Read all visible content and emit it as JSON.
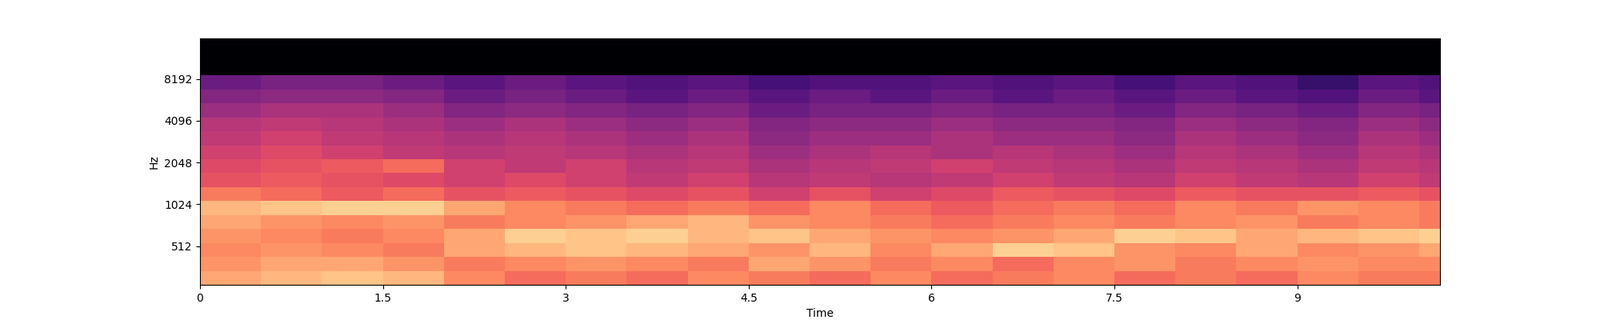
{
  "chart_data": {
    "type": "heatmap",
    "x_label": "Time",
    "y_label": "Hz",
    "xlim": [
      0,
      10.17
    ],
    "xticks": [
      0,
      1.5,
      3,
      4.5,
      6,
      7.5,
      9
    ],
    "ylim": [
      270,
      16000
    ],
    "yticks": [
      512,
      1024,
      2048,
      4096,
      8192
    ],
    "log": "y",
    "color": "magma",
    "color_range": [
      -80,
      0
    ],
    "time_edges": [
      0,
      0.5,
      1,
      1.5,
      2,
      2.5,
      3,
      3.5,
      4,
      4.5,
      5,
      5.5,
      6,
      6.5,
      7,
      7.5,
      8,
      8.5,
      9,
      9.5,
      10,
      10.17
    ],
    "freq_edges": [
      270,
      340,
      430,
      540,
      680,
      860,
      1080,
      1360,
      1720,
      2160,
      2720,
      3430,
      4320,
      5450,
      6860,
      8640,
      10900,
      13700,
      16000
    ],
    "cells": [
      [
        -15,
        -12,
        -10,
        -12,
        -20,
        -25,
        -22,
        -25,
        -20,
        -22,
        -25,
        -20,
        -25,
        -22,
        -20,
        -25,
        -22,
        -25,
        -20,
        -22,
        -22
      ],
      [
        -18,
        -15,
        -15,
        -18,
        -22,
        -20,
        -18,
        -20,
        -22,
        -15,
        -18,
        -22,
        -20,
        -25,
        -20,
        -18,
        -22,
        -20,
        -18,
        -20,
        -20
      ],
      [
        -20,
        -18,
        -20,
        -22,
        -15,
        -12,
        -10,
        -12,
        -15,
        -18,
        -12,
        -20,
        -15,
        -8,
        -10,
        -18,
        -20,
        -15,
        -20,
        -18,
        -15
      ],
      [
        -18,
        -20,
        -22,
        -20,
        -15,
        -8,
        -10,
        -8,
        -12,
        -10,
        -15,
        -18,
        -20,
        -18,
        -15,
        -8,
        -10,
        -15,
        -12,
        -10,
        -8
      ],
      [
        -15,
        -18,
        -20,
        -18,
        -22,
        -20,
        -18,
        -15,
        -12,
        -18,
        -20,
        -22,
        -25,
        -22,
        -20,
        -22,
        -20,
        -18,
        -22,
        -20,
        -22
      ],
      [
        -12,
        -10,
        -8,
        -8,
        -15,
        -20,
        -22,
        -25,
        -22,
        -25,
        -20,
        -25,
        -28,
        -25,
        -22,
        -25,
        -20,
        -22,
        -18,
        -20,
        -22
      ],
      [
        -22,
        -25,
        -28,
        -25,
        -30,
        -28,
        -30,
        -32,
        -30,
        -35,
        -30,
        -35,
        -32,
        -28,
        -30,
        -32,
        -28,
        -30,
        -30,
        -28,
        -30
      ],
      [
        -30,
        -28,
        -30,
        -32,
        -35,
        -32,
        -35,
        -38,
        -35,
        -40,
        -38,
        -40,
        -38,
        -35,
        -38,
        -40,
        -35,
        -38,
        -40,
        -35,
        -38
      ],
      [
        -32,
        -30,
        -28,
        -25,
        -35,
        -38,
        -35,
        -40,
        -38,
        -42,
        -40,
        -38,
        -35,
        -38,
        -40,
        -42,
        -38,
        -40,
        -42,
        -38,
        -40
      ],
      [
        -35,
        -32,
        -35,
        -38,
        -40,
        -38,
        -40,
        -42,
        -40,
        -45,
        -42,
        -40,
        -42,
        -40,
        -42,
        -45,
        -40,
        -42,
        -45,
        -40,
        -42
      ],
      [
        -38,
        -35,
        -38,
        -40,
        -42,
        -40,
        -42,
        -45,
        -42,
        -48,
        -45,
        -45,
        -42,
        -45,
        -45,
        -48,
        -42,
        -45,
        -48,
        -42,
        -45
      ],
      [
        -40,
        -38,
        -40,
        -42,
        -45,
        -42,
        -45,
        -48,
        -45,
        -50,
        -48,
        -48,
        -45,
        -48,
        -48,
        -50,
        -45,
        -48,
        -50,
        -45,
        -48
      ],
      [
        -45,
        -42,
        -42,
        -45,
        -50,
        -48,
        -50,
        -52,
        -50,
        -55,
        -52,
        -52,
        -50,
        -52,
        -52,
        -55,
        -50,
        -52,
        -55,
        -50,
        -52
      ],
      [
        -50,
        -48,
        -48,
        -50,
        -55,
        -52,
        -55,
        -58,
        -55,
        -58,
        -55,
        -58,
        -55,
        -58,
        -55,
        -58,
        -55,
        -58,
        -60,
        -55,
        -58
      ],
      [
        -55,
        -52,
        -52,
        -55,
        -58,
        -55,
        -58,
        -60,
        -58,
        -62,
        -60,
        -60,
        -58,
        -60,
        -58,
        -62,
        -58,
        -60,
        -65,
        -58,
        -60
      ],
      [
        -80,
        -80,
        -80,
        -80,
        -80,
        -80,
        -80,
        -80,
        -80,
        -80,
        -80,
        -80,
        -80,
        -80,
        -80,
        -80,
        -80,
        -80,
        -80,
        -80,
        -80
      ],
      [
        -80,
        -80,
        -80,
        -80,
        -80,
        -80,
        -80,
        -80,
        -80,
        -80,
        -80,
        -80,
        -80,
        -80,
        -80,
        -80,
        -80,
        -80,
        -80,
        -80,
        -80
      ],
      [
        -80,
        -80,
        -80,
        -80,
        -80,
        -80,
        -80,
        -80,
        -80,
        -80,
        -80,
        -80,
        -80,
        -80,
        -80,
        -80,
        -80,
        -80,
        -80,
        -80,
        -80
      ]
    ]
  }
}
